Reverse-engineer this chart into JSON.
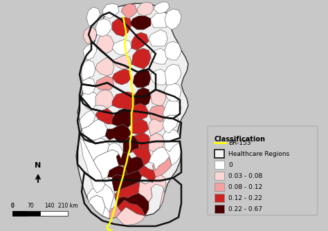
{
  "background_color": "#b0b0b0",
  "map_bg": "#c8c8c8",
  "title": "",
  "legend_title": "Classification",
  "legend_items": [
    {
      "label": "BR-153",
      "color": "#ffff00",
      "type": "line"
    },
    {
      "label": "Healthcare Regions",
      "color": "#000000",
      "type": "rect_outline"
    },
    {
      "label": "0",
      "color": "#ffffff",
      "type": "rect"
    },
    {
      "label": "0.03 - 0.08",
      "color": "#fcd5d5",
      "type": "rect"
    },
    {
      "label": "0.08 - 0.12",
      "color": "#f4a0a0",
      "type": "rect"
    },
    {
      "label": "0.12 - 0.22",
      "color": "#cc2222",
      "type": "rect"
    },
    {
      "label": "0.22 - 0.67",
      "color": "#4a0000",
      "type": "rect"
    }
  ],
  "scalebar_ticks": [
    0,
    70,
    140,
    210
  ],
  "scalebar_unit": "km",
  "colors": {
    "white": "#ffffff",
    "light_pink": "#fcd5d5",
    "pink": "#f4a0a0",
    "red": "#cc2222",
    "dark_red": "#4a0000",
    "yellow": "#ffff00",
    "gray": "#b8b8b8",
    "dark_gray": "#888888",
    "black": "#000000",
    "border_color": "#222222"
  }
}
